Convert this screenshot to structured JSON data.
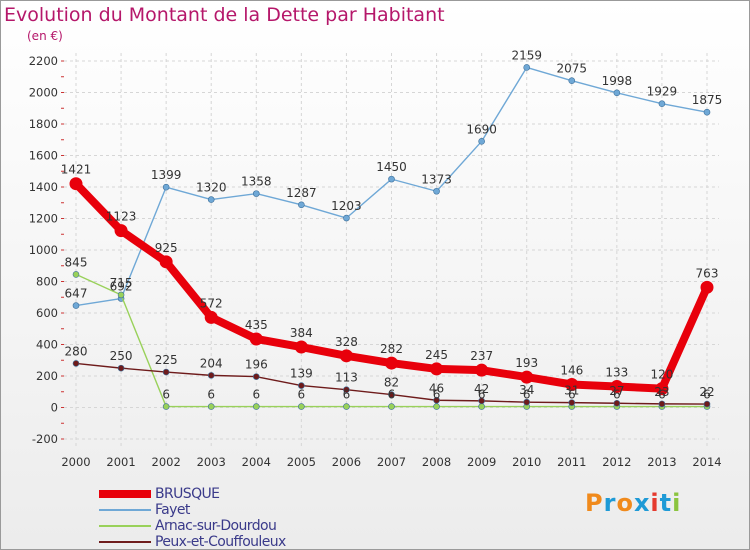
{
  "title": "Evolution du Montant de la Dette par Habitant",
  "subtitle": "(en €)",
  "logo": {
    "letters": [
      "P",
      "r",
      "o",
      "x",
      "i",
      "t",
      "i"
    ],
    "colors": [
      "#f08a1c",
      "#1e9ad6",
      "#f08a1c",
      "#1e9ad6",
      "#e53a2e",
      "#1e9ad6",
      "#8bc43f"
    ]
  },
  "chart_data": {
    "type": "line",
    "title": "Evolution du Montant de la Dette par Habitant",
    "subtitle": "(en €)",
    "x": [
      "2000",
      "2001",
      "2002",
      "2003",
      "2004",
      "2005",
      "2006",
      "2007",
      "2008",
      "2009",
      "2010",
      "2011",
      "2012",
      "2013",
      "2014"
    ],
    "ylim": [
      -200,
      2200
    ],
    "yticks": [
      "-200",
      "0",
      "200",
      "400",
      "600",
      "800",
      "1000",
      "1200",
      "1400",
      "1600",
      "1800",
      "2000",
      "2200"
    ],
    "grid": true,
    "legend_position": "bottom-left",
    "series": [
      {
        "name": "BRUSQUE",
        "color": "#e8000b",
        "values": [
          1421,
          1123,
          925,
          572,
          435,
          384,
          328,
          282,
          245,
          237,
          193,
          146,
          133,
          120,
          763
        ]
      },
      {
        "name": "Fayet",
        "color": "#6fa8d6",
        "values": [
          647,
          692,
          1399,
          1320,
          1358,
          1287,
          1203,
          1450,
          1373,
          1690,
          2159,
          2075,
          1998,
          1929,
          1875
        ]
      },
      {
        "name": "Arnac-sur-Dourdou",
        "color": "#99d15a",
        "values": [
          845,
          715,
          6,
          6,
          6,
          6,
          6,
          6,
          6,
          6,
          6,
          6,
          6,
          6,
          6
        ]
      },
      {
        "name": "Peux-et-Couffouleux",
        "color": "#6e1b1b",
        "values": [
          280,
          250,
          225,
          204,
          196,
          139,
          113,
          82,
          46,
          42,
          34,
          31,
          27,
          23,
          22
        ]
      }
    ]
  }
}
